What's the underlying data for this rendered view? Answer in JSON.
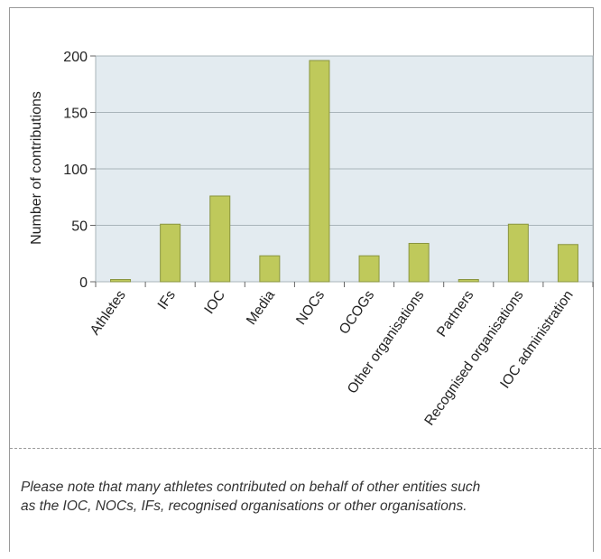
{
  "chart_data": {
    "type": "bar",
    "title": "",
    "xlabel": "",
    "ylabel": "Number of contributions",
    "ylim": [
      0,
      200
    ],
    "yticks": [
      0,
      50,
      100,
      150,
      200
    ],
    "grid": true,
    "categories": [
      "Athletes",
      "IFs",
      "IOC",
      "Media",
      "NOCs",
      "OCOGs",
      "Other organisations",
      "Partners",
      "Recognised organisations",
      "IOC administration"
    ],
    "values": [
      2,
      51,
      76,
      23,
      196,
      23,
      34,
      2,
      51,
      33
    ],
    "colors": {
      "bar_fill": "#bfc95b",
      "bar_stroke": "#8a9540",
      "plot_bg": "#e3ebf0",
      "grid": "#a9b4ba"
    }
  },
  "note": {
    "line1": "Please note that many athletes contributed on behalf of other entities such",
    "line2": "as the IOC, NOCs, IFs, recognised organisations or other organisations."
  }
}
